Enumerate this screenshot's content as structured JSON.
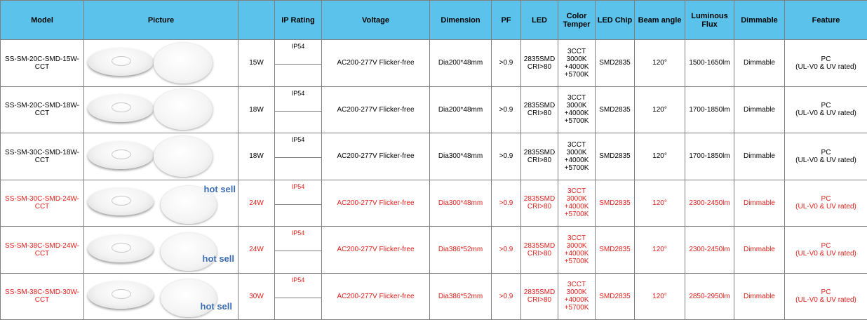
{
  "headers": {
    "model": "Model",
    "picture": "Picture",
    "power": "",
    "ip_rating": "IP Rating",
    "voltage": "Voltage",
    "dimension": "Dimension",
    "pf": "PF",
    "led": "LED",
    "color_temper": "Color\nTemper",
    "led_chip": "LED Chip",
    "beam_angle": "Beam angle",
    "luminous_flux": "Luminous\nFlux",
    "dimmable": "Dimmable",
    "feature": "Feature"
  },
  "rows": [
    {
      "model": "SS-SM-20C-SMD-15W-\nCCT",
      "power": "15W",
      "ip": "IP54",
      "voltage": "AC200-277V Flicker-free",
      "dimension": "Dia200*48mm",
      "pf": ">0.9",
      "led": "2835SMD\nCRI>80",
      "cct": "3CCT\n3000K\n+4000K\n+5700K",
      "chip": "SMD2835",
      "beam": "120°",
      "flux": "1500-1650lm",
      "dimmable": "Dimmable",
      "feature": "PC\n(UL-V0 & UV rated)",
      "hot_sell": "",
      "highlight": false
    },
    {
      "model": "SS-SM-20C-SMD-18W-\nCCT",
      "power": "18W",
      "ip": "IP54",
      "voltage": "AC200-277V Flicker-free",
      "dimension": "Dia200*48mm",
      "pf": ">0.9",
      "led": "2835SMD\nCRI>80",
      "cct": "3CCT\n3000K\n+4000K\n+5700K",
      "chip": "SMD2835",
      "beam": "120°",
      "flux": "1700-1850lm",
      "dimmable": "Dimmable",
      "feature": "PC\n(UL-V0 & UV rated)",
      "hot_sell": "",
      "highlight": false
    },
    {
      "model": "SS-SM-30C-SMD-18W-\nCCT",
      "power": "18W",
      "ip": "IP54",
      "voltage": "AC200-277V Flicker-free",
      "dimension": "Dia300*48mm",
      "pf": ">0.9",
      "led": "2835SMD\nCRI>80",
      "cct": "3CCT\n3000K\n+4000K\n+5700K",
      "chip": "SMD2835",
      "beam": "120°",
      "flux": "1700-1850lm",
      "dimmable": "Dimmable",
      "feature": "PC\n(UL-V0 & UV rated)",
      "hot_sell": "",
      "highlight": false
    },
    {
      "model": "SS-SM-30C-SMD-24W-\nCCT",
      "power": "24W",
      "ip": "IP54",
      "voltage": "AC200-277V Flicker-free",
      "dimension": "Dia300*48mm",
      "pf": ">0.9",
      "led": "2835SMD\nCRI>80",
      "cct": "3CCT\n3000K\n+4000K\n+5700K",
      "chip": "SMD2835",
      "beam": "120°",
      "flux": "2300-2450lm",
      "dimmable": "Dimmable",
      "feature": "PC\n(UL-V0 & UV rated)",
      "hot_sell": "hot sell",
      "highlight": true
    },
    {
      "model": "SS-SM-38C-SMD-24W-\nCCT",
      "power": "24W",
      "ip": "IP54",
      "voltage": "AC200-277V Flicker-free",
      "dimension": "Dia386*52mm",
      "pf": ">0.9",
      "led": "2835SMD\nCRI>80",
      "cct": "3CCT\n3000K\n+4000K\n+5700K",
      "chip": "SMD2835",
      "beam": "120°",
      "flux": "2300-2450lm",
      "dimmable": "Dimmable",
      "feature": "PC\n(UL-V0 & UV rated)",
      "hot_sell": "hot sell",
      "highlight": true
    },
    {
      "model": "SS-SM-38C-SMD-30W-\nCCT",
      "power": "30W",
      "ip": "IP54",
      "voltage": "AC200-277V Flicker-free",
      "dimension": "Dia386*52mm",
      "pf": ">0.9",
      "led": "2835SMD\nCRI>80",
      "cct": "3CCT\n3000K\n+4000K\n+5700K",
      "chip": "SMD2835",
      "beam": "120°",
      "flux": "2850-2950lm",
      "dimmable": "Dimmable",
      "feature": "PC\n(UL-V0 & UV rated)",
      "hot_sell": "hot sell",
      "highlight": true
    }
  ],
  "colors": {
    "header_bg": "#5bc3eb",
    "highlight_text": "#e0201b",
    "hot_sell_text": "#3d6db5",
    "grid_line": "#7f7f7f"
  }
}
